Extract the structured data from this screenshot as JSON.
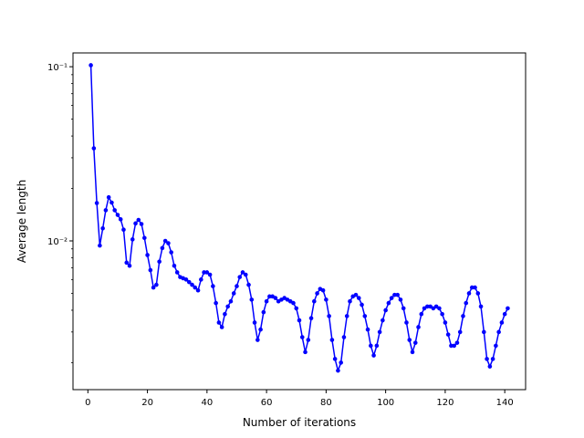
{
  "chart_data": {
    "type": "line",
    "title": "",
    "xlabel": "Number of iterations",
    "ylabel": "Average length",
    "xlim": [
      -5,
      147
    ],
    "ylim": [
      0.0014,
      0.12
    ],
    "yscale": "log",
    "grid": false,
    "x_ticks": [
      0,
      20,
      40,
      60,
      80,
      100,
      120,
      140
    ],
    "x_tick_labels": [
      "0",
      "20",
      "40",
      "60",
      "80",
      "100",
      "120",
      "140"
    ],
    "y_ticks": [
      0.01,
      0.1
    ],
    "y_tick_labels": [
      "10⁻²",
      "10⁻¹"
    ],
    "y_minor_ticks": [
      0.002,
      0.003,
      0.004,
      0.005,
      0.006,
      0.007,
      0.008,
      0.009,
      0.02,
      0.03,
      0.04,
      0.05,
      0.06,
      0.07,
      0.08,
      0.09
    ],
    "series": [
      {
        "color": "#0000ff",
        "marker": "circle",
        "x": [
          1,
          2,
          3,
          4,
          5,
          6,
          7,
          8,
          9,
          10,
          11,
          12,
          13,
          14,
          15,
          16,
          17,
          18,
          19,
          20,
          21,
          22,
          23,
          24,
          25,
          26,
          27,
          28,
          29,
          30,
          31,
          32,
          33,
          34,
          35,
          36,
          37,
          38,
          39,
          40,
          41,
          42,
          43,
          44,
          45,
          46,
          47,
          48,
          49,
          50,
          51,
          52,
          53,
          54,
          55,
          56,
          57,
          58,
          59,
          60,
          61,
          62,
          63,
          64,
          65,
          66,
          67,
          68,
          69,
          70,
          71,
          72,
          73,
          74,
          75,
          76,
          77,
          78,
          79,
          80,
          81,
          82,
          83,
          84,
          85,
          86,
          87,
          88,
          89,
          90,
          91,
          92,
          93,
          94,
          95,
          96,
          97,
          98,
          99,
          100,
          101,
          102,
          103,
          104,
          105,
          106,
          107,
          108,
          109,
          110,
          111,
          112,
          113,
          114,
          115,
          116,
          117,
          118,
          119,
          120,
          121,
          122,
          123,
          124,
          125,
          126,
          127,
          128,
          129,
          130,
          131,
          132,
          133,
          134,
          135,
          136,
          137,
          138,
          139,
          140,
          141
        ],
        "y": [
          0.102,
          0.034,
          0.0165,
          0.0094,
          0.0118,
          0.015,
          0.0178,
          0.0166,
          0.015,
          0.0141,
          0.0133,
          0.0116,
          0.0075,
          0.0072,
          0.0102,
          0.0126,
          0.0132,
          0.0125,
          0.0104,
          0.0083,
          0.0068,
          0.0054,
          0.0056,
          0.0076,
          0.0091,
          0.01,
          0.0097,
          0.0086,
          0.0072,
          0.0066,
          0.0062,
          0.0061,
          0.006,
          0.0058,
          0.0056,
          0.0054,
          0.0052,
          0.006,
          0.0066,
          0.0066,
          0.0064,
          0.0055,
          0.0044,
          0.0034,
          0.0032,
          0.0038,
          0.0042,
          0.0045,
          0.005,
          0.0055,
          0.0062,
          0.0066,
          0.0064,
          0.0056,
          0.0046,
          0.0034,
          0.0027,
          0.0031,
          0.0039,
          0.0045,
          0.0048,
          0.0048,
          0.0047,
          0.0045,
          0.0046,
          0.0047,
          0.0046,
          0.0045,
          0.0044,
          0.0041,
          0.0035,
          0.0028,
          0.0023,
          0.0027,
          0.0036,
          0.0045,
          0.005,
          0.0053,
          0.0052,
          0.0046,
          0.0037,
          0.0027,
          0.0021,
          0.0018,
          0.002,
          0.0028,
          0.0037,
          0.0045,
          0.0048,
          0.0049,
          0.0047,
          0.0043,
          0.0037,
          0.0031,
          0.0025,
          0.0022,
          0.0025,
          0.003,
          0.0035,
          0.004,
          0.0044,
          0.0047,
          0.0049,
          0.0049,
          0.0046,
          0.0041,
          0.0034,
          0.0027,
          0.0023,
          0.0026,
          0.0032,
          0.0038,
          0.0041,
          0.0042,
          0.0042,
          0.0041,
          0.0042,
          0.0041,
          0.0038,
          0.0034,
          0.0029,
          0.0025,
          0.0025,
          0.0026,
          0.003,
          0.0037,
          0.0044,
          0.005,
          0.0054,
          0.0054,
          0.005,
          0.0042,
          0.003,
          0.0021,
          0.0019,
          0.0021,
          0.0025,
          0.003,
          0.0034,
          0.0038,
          0.0041
        ]
      }
    ]
  }
}
